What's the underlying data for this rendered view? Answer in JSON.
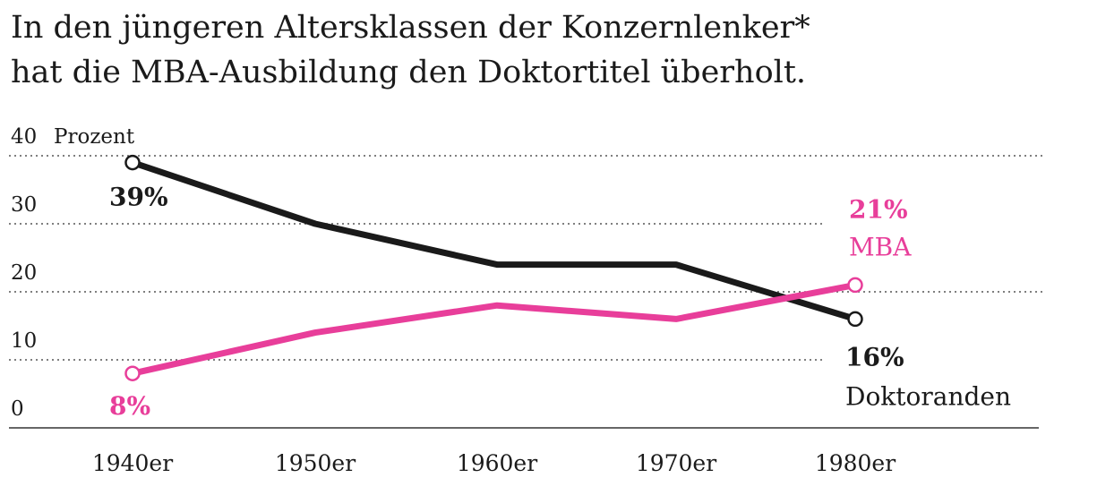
{
  "chart_data": {
    "type": "line",
    "title_lines": [
      "In den jüngeren Altersklassen der Konzernlenker*",
      "hat die MBA-Ausbildung den Doktortitel überholt."
    ],
    "ylabel": "Prozent",
    "ylim": [
      0,
      40
    ],
    "yticks": [
      "40",
      "30",
      "20",
      "10",
      "0"
    ],
    "ytick_values": [
      40,
      30,
      20,
      10,
      0
    ],
    "categories": [
      "1940er",
      "1950er",
      "1960er",
      "1970er",
      "1980er"
    ],
    "grid": "horizontal dotted",
    "series": [
      {
        "name": "Doktoranden",
        "color": "#1a1a1a",
        "values": [
          39,
          30,
          24,
          24,
          16
        ],
        "start_label": "39%",
        "end_label": "16%"
      },
      {
        "name": "MBA",
        "color": "#e83e9a",
        "values": [
          8,
          14,
          18,
          16,
          21
        ],
        "start_label": "8%",
        "end_label": "21%"
      }
    ]
  }
}
